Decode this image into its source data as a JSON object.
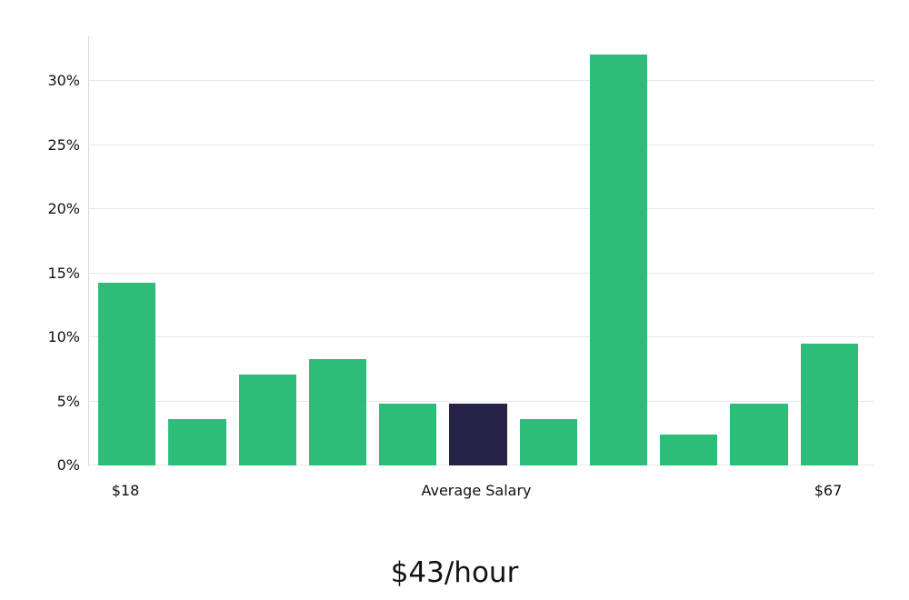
{
  "chart_data": {
    "type": "bar",
    "title": "$43/hour",
    "categories": [
      "$18",
      "",
      "",
      "",
      "",
      "Average Salary",
      "",
      "",
      "",
      "",
      "$67"
    ],
    "values": [
      14.3,
      3.6,
      7.1,
      8.3,
      4.8,
      4.8,
      3.6,
      32.1,
      2.4,
      4.8,
      9.5
    ],
    "highlight_index": 5,
    "x_axis_labels": {
      "left": "$18",
      "center": "Average Salary",
      "right": "$67"
    },
    "y_ticks": [
      0,
      5,
      10,
      15,
      20,
      25,
      30
    ],
    "y_tick_labels": [
      "0%",
      "5%",
      "10%",
      "15%",
      "20%",
      "25%",
      "30%"
    ],
    "ylim": [
      0,
      33.5
    ],
    "grid": "horizontal",
    "legend": "none",
    "colors": {
      "bar": "#2ebd78",
      "highlight": "#262347",
      "grid": "#e8e8e8",
      "axis": "#d9d9d9",
      "text": "#111111"
    }
  }
}
